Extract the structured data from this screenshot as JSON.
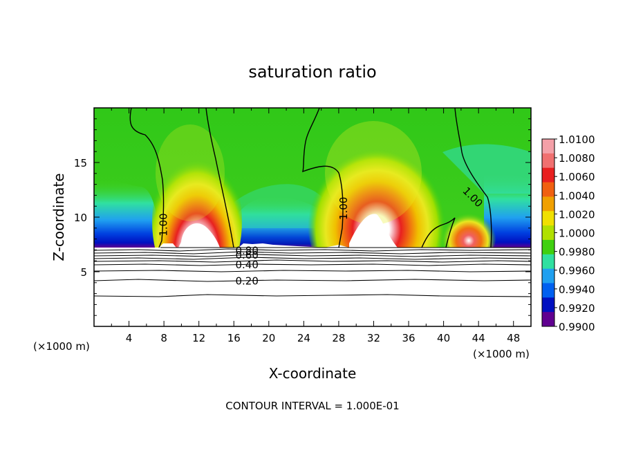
{
  "chart_data": {
    "type": "contour",
    "title": "saturation ratio",
    "xlabel": "X-coordinate",
    "ylabel": "Z-coordinate",
    "x_unit_left": "(×1000 m)",
    "x_unit_right": "(×1000 m)",
    "footer": "CONTOUR INTERVAL = 1.000E-01",
    "xlim": [
      0,
      50
    ],
    "ylim": [
      0,
      20
    ],
    "x_ticks": [
      4,
      8,
      12,
      16,
      20,
      24,
      28,
      32,
      36,
      40,
      44,
      48
    ],
    "y_ticks": [
      5,
      10,
      15
    ],
    "colorbar": {
      "levels": [
        "1.0100",
        "1.0080",
        "1.0060",
        "1.0040",
        "1.0020",
        "1.0000",
        "0.9980",
        "0.9960",
        "0.9940",
        "0.9920",
        "0.9900"
      ],
      "colors": [
        "#f4a0a8",
        "#f07070",
        "#e82020",
        "#f06010",
        "#f0a000",
        "#f0e000",
        "#b0e000",
        "#40d010",
        "#30e0a0",
        "#20a0f0",
        "#0060f0",
        "#0010c0",
        "#600090"
      ],
      "range": [
        0.99,
        1.01
      ]
    },
    "contour_labels": [
      {
        "text": "1.00",
        "x": 8.0,
        "z": 9.3
      },
      {
        "text": "1.00",
        "x": 28.6,
        "z": 10.8
      },
      {
        "text": "1.00",
        "x": 43.3,
        "z": 11.8
      },
      {
        "text": "0.80",
        "x": 17.5,
        "z": 6.9
      },
      {
        "text": "0.60",
        "x": 17.5,
        "z": 6.5
      },
      {
        "text": "0.40",
        "x": 17.5,
        "z": 5.6
      },
      {
        "text": "0.20",
        "x": 17.5,
        "z": 4.1
      }
    ],
    "cloud_base_z": 7.0,
    "supersaturation_maxima": [
      {
        "x": 11,
        "z": 10,
        "value": 1.01
      },
      {
        "x": 32,
        "z": 11,
        "value": 1.01
      },
      {
        "x": 43,
        "z": 8.5,
        "value": 1.008
      }
    ],
    "grid": false,
    "legend_position": "right"
  }
}
